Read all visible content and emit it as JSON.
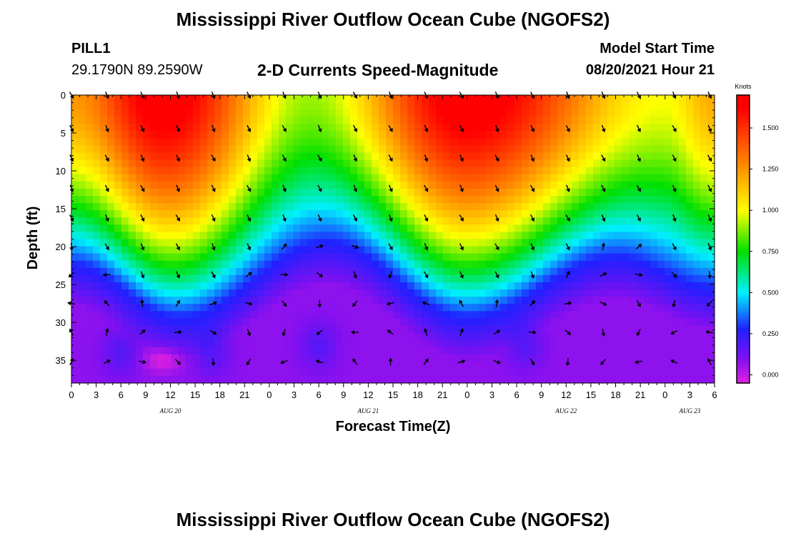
{
  "page": {
    "title_top": "Mississippi River Outflow Ocean Cube (NGOFS2)",
    "title_bottom": "Mississippi River Outflow Ocean Cube (NGOFS2)",
    "station_id": "PILL1",
    "station_coords": "29.1790N  89.2590W",
    "subtitle": "2-D Currents Speed-Magnitude",
    "model_start_label": "Model Start Time",
    "model_start_value": "08/20/2021 Hour 21"
  },
  "chart_data": {
    "type": "heatmap",
    "title": "2-D Currents Speed-Magnitude",
    "xlabel": "Forecast Time(Z)",
    "ylabel": "Depth (ft)",
    "x_unit": "hours since 08/20/2021 00Z",
    "xlim": [
      0,
      78
    ],
    "ylim": [
      0,
      38
    ],
    "y_inverted": true,
    "x_tick_labels": [
      "0",
      "3",
      "6",
      "9",
      "12",
      "15",
      "18",
      "21",
      "0",
      "3",
      "6",
      "9",
      "12",
      "15",
      "18",
      "21",
      "0",
      "3",
      "6",
      "9",
      "12",
      "15",
      "18",
      "21",
      "0",
      "3",
      "6"
    ],
    "y_tick_labels": [
      "0",
      "5",
      "10",
      "15",
      "20",
      "25",
      "30",
      "35"
    ],
    "date_labels": [
      {
        "label": "AUG 20",
        "x": 12
      },
      {
        "label": "AUG 21",
        "x": 36
      },
      {
        "label": "AUG 22",
        "x": 60
      },
      {
        "label": "AUG 23",
        "x": 75
      }
    ],
    "colorbar": {
      "title": "Knots",
      "min": -0.05,
      "max": 1.7,
      "tick_labels": [
        "0.000",
        "0.250",
        "0.500",
        "0.750",
        "1.000",
        "1.250",
        "1.500"
      ],
      "tick_values": [
        0,
        0.25,
        0.5,
        0.75,
        1.0,
        1.25,
        1.5
      ],
      "colors": [
        "#e020e0",
        "#8010f0",
        "#2020ff",
        "#00f0ff",
        "#00e000",
        "#ffff00",
        "#ff8000",
        "#ff0000"
      ]
    },
    "speed_field": {
      "description_units": "knots",
      "surface_peaks": [
        {
          "x": 11,
          "value": 1.7
        },
        {
          "x": 48,
          "value": 1.7
        }
      ],
      "surface_min": [
        {
          "x": 29,
          "value": 0.9
        },
        {
          "x": 72,
          "value": 1.0
        }
      ],
      "slow_layer_top_depth": [
        {
          "x": 0,
          "depth": 22
        },
        {
          "x": 13,
          "depth": 29
        },
        {
          "x": 31,
          "depth": 19
        },
        {
          "x": 48,
          "depth": 29
        },
        {
          "x": 66,
          "depth": 21
        },
        {
          "x": 78,
          "depth": 25
        }
      ],
      "bottom_min": [
        {
          "x": 11,
          "depth": 35,
          "value": 0.0
        }
      ]
    },
    "vector_rows_depth": [
      0,
      4.4,
      8.3,
      12.3,
      16.2,
      20.0,
      23.7,
      27.5,
      31.3,
      35.2
    ],
    "vector_columns_x": [
      0,
      4.3,
      8.6,
      12.9,
      17.2,
      21.5,
      25.8,
      30.1,
      34.4,
      38.7,
      43.0,
      47.3,
      51.6,
      55.9,
      60.2,
      64.5,
      68.8,
      73.1,
      77.4
    ]
  }
}
